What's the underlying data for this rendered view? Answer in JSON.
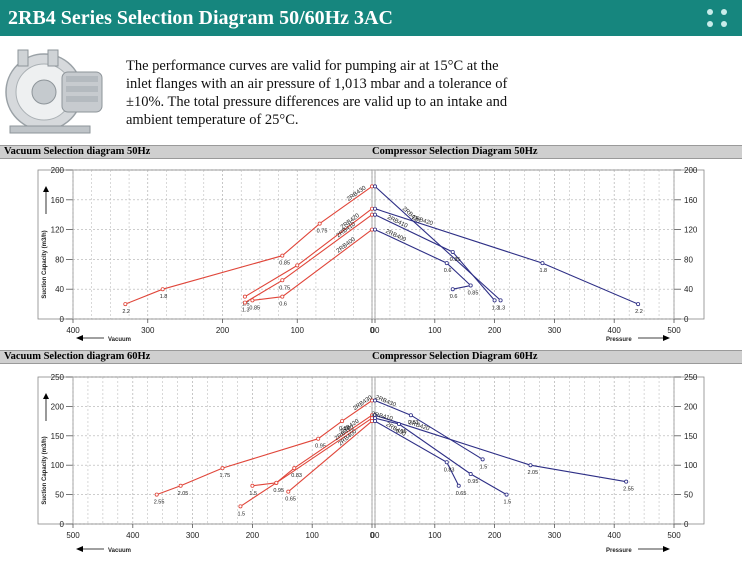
{
  "header": {
    "title": "2RB4 Series Selection Diagram 50/60Hz 3AC",
    "accent": "#16867e"
  },
  "icons": {
    "menu": "dots-grid-icon",
    "product": "side-channel-blower-image"
  },
  "intro": "The performance curves are valid for pumping air at 15°C at the inlet flanges with an air pressure of 1,013 mbar and a tolerance of ±10%. The total pressure differences are valid up to an intake and ambient temperature of 25°C.",
  "colors": {
    "vacuum": "#e0463a",
    "compressor": "#2e2f86",
    "grid": "#b0b0b0"
  },
  "panels": [
    {
      "vacuum_title": "Vacuum Selection diagram 50Hz",
      "compressor_title": "Compressor Selection Diagram 50Hz"
    },
    {
      "vacuum_title": "Vacuum Selection diagram 60Hz",
      "compressor_title": "Compressor Selection Diagram 60Hz"
    }
  ],
  "chart_data": [
    {
      "type": "line",
      "title": "Vacuum Selection diagram 50Hz",
      "ylabel": "Suction Capacity (m3/h)",
      "xlabel": "Vacuum",
      "xlim": [
        400,
        0
      ],
      "ylim": [
        0,
        200
      ],
      "xticks": [
        "400",
        "300",
        "200",
        "100",
        "0"
      ],
      "yticks": [
        "0",
        "40",
        "80",
        "120",
        "160",
        "200"
      ],
      "grid": true,
      "series": [
        {
          "name": "2RB430",
          "points": [
            [
              330,
              20
            ],
            [
              280,
              40
            ],
            [
              120,
              85
            ],
            [
              70,
              128
            ],
            [
              0,
              178
            ]
          ],
          "labels": [
            "2.2",
            "1.8",
            "0.85",
            "0.75",
            ""
          ]
        },
        {
          "name": "2RB420",
          "points": [
            [
              170,
              30
            ],
            [
              100,
              72
            ],
            [
              0,
              148
            ]
          ],
          "labels": [
            "1.5",
            "",
            ""
          ]
        },
        {
          "name": "2RB410",
          "points": [
            [
              170,
              22
            ],
            [
              120,
              52
            ],
            [
              0,
              140
            ]
          ],
          "labels": [
            "1.3",
            "0.75",
            ""
          ]
        },
        {
          "name": "2RB400",
          "points": [
            [
              160,
              25
            ],
            [
              120,
              30
            ],
            [
              0,
              120
            ]
          ],
          "labels": [
            "0.85",
            "0.6",
            ""
          ]
        }
      ]
    },
    {
      "type": "line",
      "title": "Compressor Selection Diagram 50Hz",
      "ylabel": "Suction Capacity (m3/h)",
      "xlabel": "Pressure",
      "xlim": [
        0,
        500
      ],
      "ylim": [
        0,
        200
      ],
      "xticks": [
        "00",
        "100",
        "200",
        "300",
        "400",
        "500"
      ],
      "yticks": [
        "0",
        "40",
        "80",
        "120",
        "160",
        "200"
      ],
      "grid": true,
      "series": [
        {
          "name": "2RB430",
          "points": [
            [
              0,
              178
            ],
            [
              210,
              25
            ]
          ],
          "labels": [
            "",
            "1.3"
          ]
        },
        {
          "name": "2RB420",
          "points": [
            [
              0,
              148
            ],
            [
              280,
              75
            ],
            [
              440,
              20
            ]
          ],
          "labels": [
            "",
            "1.8",
            "2.2"
          ]
        },
        {
          "name": "2RB410",
          "points": [
            [
              0,
              140
            ],
            [
              130,
              90
            ],
            [
              200,
              25
            ]
          ],
          "labels": [
            "",
            "0.85",
            "1.3"
          ]
        },
        {
          "name": "2RB400",
          "points": [
            [
              0,
              120
            ],
            [
              120,
              75
            ],
            [
              160,
              45
            ],
            [
              130,
              40
            ]
          ],
          "labels": [
            "",
            "0.6",
            "0.85",
            "0.6"
          ]
        }
      ]
    },
    {
      "type": "line",
      "title": "Vacuum Selection diagram 60Hz",
      "ylabel": "Suction Capacity (m3/h)",
      "xlabel": "Vacuum",
      "xlim": [
        500,
        0
      ],
      "ylim": [
        0,
        250
      ],
      "xticks": [
        "500",
        "400",
        "300",
        "200",
        "100",
        "0"
      ],
      "yticks": [
        "0",
        "50",
        "100",
        "150",
        "200",
        "250"
      ],
      "grid": true,
      "series": [
        {
          "name": "2RB430",
          "points": [
            [
              360,
              50
            ],
            [
              320,
              65
            ],
            [
              250,
              95
            ],
            [
              90,
              145
            ],
            [
              50,
              175
            ],
            [
              0,
              210
            ]
          ],
          "labels": [
            "2.55",
            "2.05",
            "1.75",
            "0.95",
            "0.83",
            ""
          ]
        },
        {
          "name": "2RB420",
          "points": [
            [
              200,
              65
            ],
            [
              160,
              70
            ],
            [
              130,
              95
            ],
            [
              0,
              185
            ]
          ],
          "labels": [
            "1.5",
            "0.95",
            "0.83",
            ""
          ]
        },
        {
          "name": "2RB410",
          "points": [
            [
              220,
              30
            ],
            [
              160,
              70
            ],
            [
              0,
              180
            ]
          ],
          "labels": [
            "1.5",
            "",
            ""
          ]
        },
        {
          "name": "2RB400",
          "points": [
            [
              140,
              55
            ],
            [
              0,
              175
            ]
          ],
          "labels": [
            "0.65",
            ""
          ]
        }
      ]
    },
    {
      "type": "line",
      "title": "Compressor Selection Diagram 60Hz",
      "ylabel": "Suction Capacity (m3/h)",
      "xlabel": "Pressure",
      "xlim": [
        0,
        500
      ],
      "ylim": [
        0,
        250
      ],
      "xticks": [
        "00",
        "100",
        "200",
        "300",
        "400",
        "500"
      ],
      "yticks": [
        "0",
        "50",
        "100",
        "150",
        "200",
        "250"
      ],
      "grid": true,
      "series": [
        {
          "name": "2RB430",
          "points": [
            [
              0,
              210
            ],
            [
              60,
              185
            ],
            [
              180,
              110
            ]
          ],
          "labels": [
            "",
            "0.83",
            "1.5"
          ]
        },
        {
          "name": "2RB420",
          "points": [
            [
              0,
              185
            ],
            [
              260,
              100
            ],
            [
              420,
              72
            ]
          ],
          "labels": [
            "",
            "2.05",
            "2.55"
          ]
        },
        {
          "name": "2RB410",
          "points": [
            [
              0,
              180
            ],
            [
              40,
              170
            ],
            [
              160,
              85
            ],
            [
              220,
              50
            ]
          ],
          "labels": [
            "",
            "0.95",
            "0.95",
            "1.5"
          ]
        },
        {
          "name": "2RB400",
          "points": [
            [
              0,
              175
            ],
            [
              120,
              105
            ],
            [
              140,
              65
            ]
          ],
          "labels": [
            "",
            "0.83",
            "0.65"
          ]
        }
      ]
    }
  ]
}
